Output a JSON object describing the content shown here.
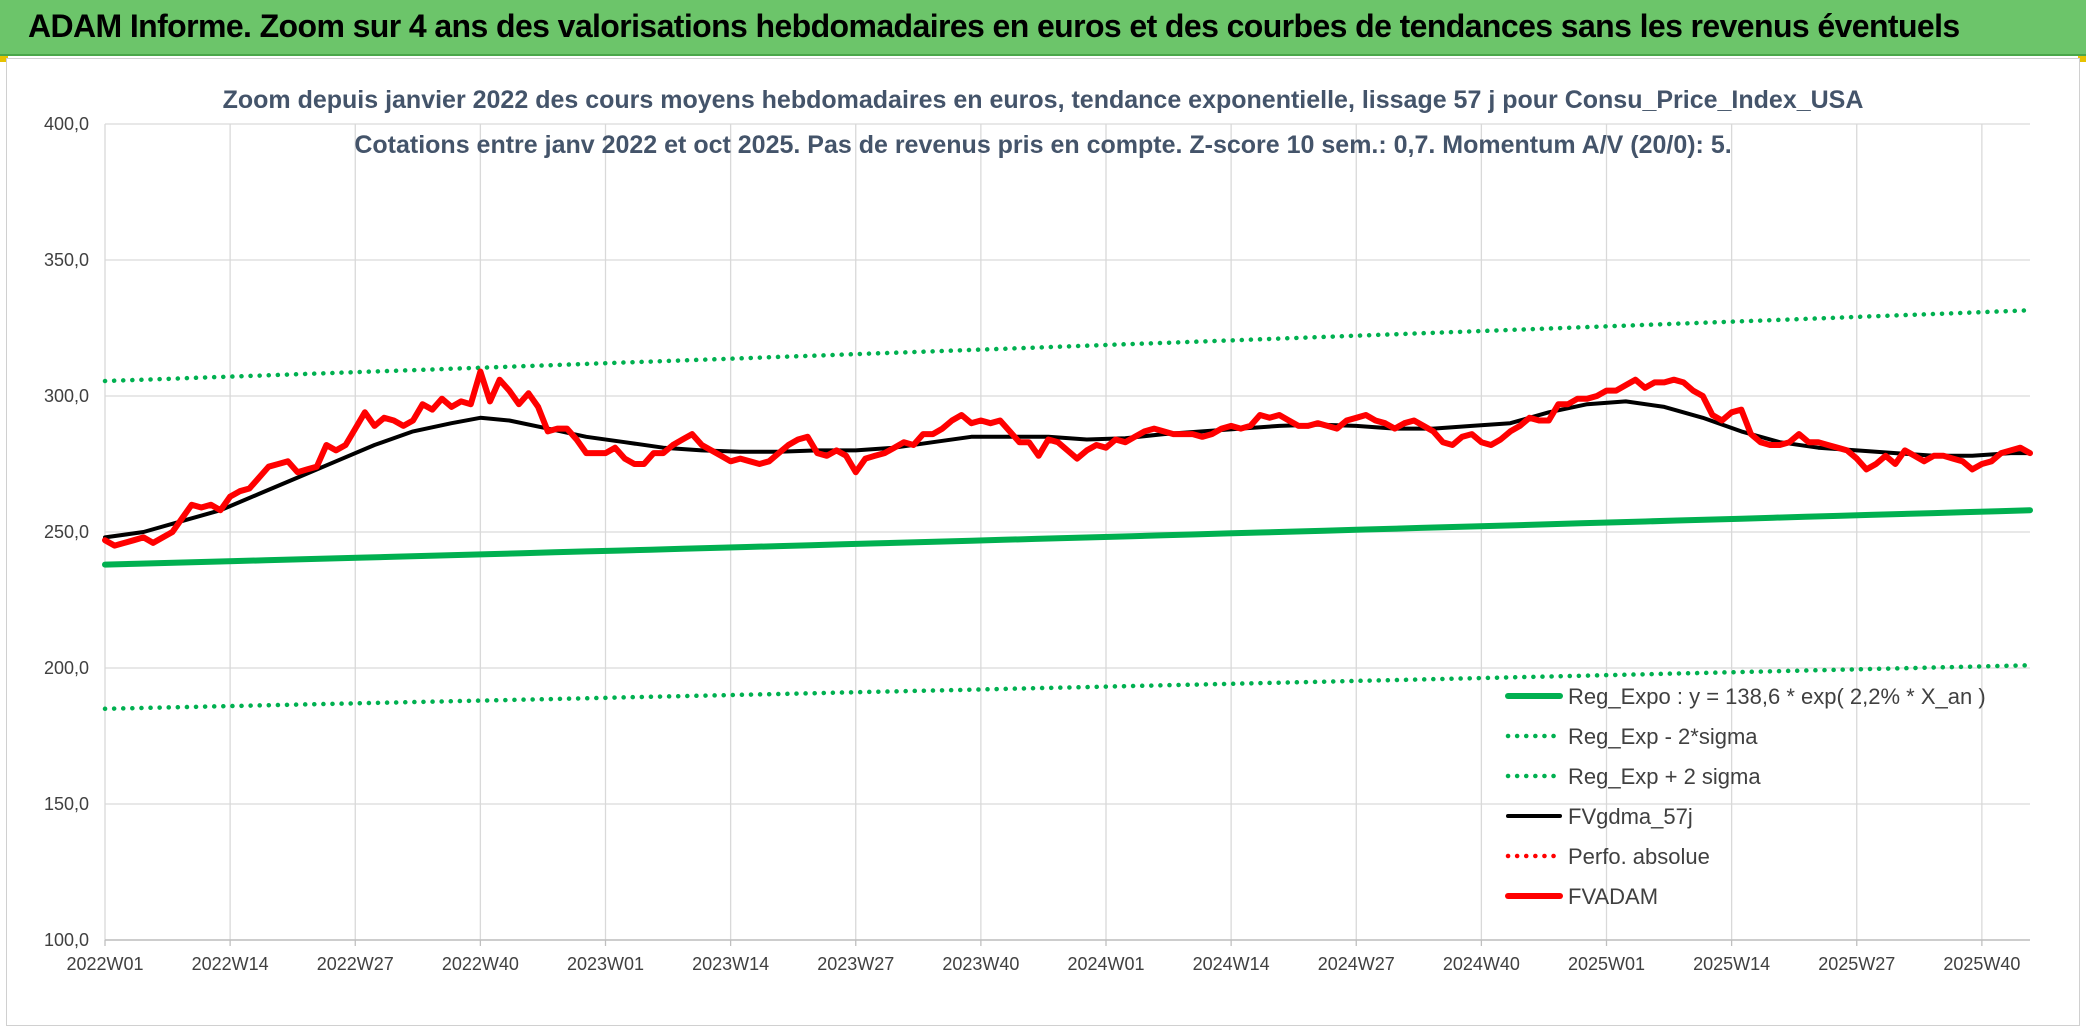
{
  "header": {
    "title": "ADAM Informe. Zoom sur 4 ans des valorisations hebdomadaires en euros et des courbes de tendances sans les revenus éventuels"
  },
  "colors": {
    "header_bg": "#6cc56a",
    "trend_green": "#00b050",
    "fvgdma": "#000000",
    "fvadam": "#ff0000",
    "title_text": "#44546a"
  },
  "chart_data": {
    "type": "line",
    "title": "Zoom depuis janvier 2022 des cours moyens hebdomadaires en euros, tendance exponentielle, lissage 57 j pour Consu_Price_Index_USA",
    "subtitle": "Cotations entre janv 2022 et oct 2025. Pas de revenus pris en compte. Z-score 10 sem.: 0,7. Momentum A/V (20/0): 5.",
    "xlabel": "",
    "ylabel": "",
    "ylim": [
      100,
      400
    ],
    "y_ticks": [
      "100,0",
      "150,0",
      "200,0",
      "250,0",
      "300,0",
      "350,0",
      "400,0"
    ],
    "x_tick_labels": [
      "2022W01",
      "2022W14",
      "2022W27",
      "2022W40",
      "2023W01",
      "2023W14",
      "2023W27",
      "2023W40",
      "2024W01",
      "2024W14",
      "2024W27",
      "2024W40",
      "2025W01",
      "2025W14",
      "2025W27",
      "2025W40"
    ],
    "x_tick_index": [
      0,
      13,
      26,
      39,
      52,
      65,
      78,
      91,
      104,
      117,
      130,
      143,
      156,
      169,
      182,
      195
    ],
    "n_weeks": 201,
    "grid": true,
    "legend_position": "bottom-right",
    "series": [
      {
        "name": "Reg_Expo : y = 138,6 * exp( 2,2% *  X_an )",
        "style": "solid-thick",
        "color": "#00b050",
        "points": [
          [
            0,
            238
          ],
          [
            200,
            258
          ]
        ]
      },
      {
        "name": "Reg_Exp - 2*sigma",
        "style": "dotted",
        "color": "#00b050",
        "points": [
          [
            0,
            185
          ],
          [
            200,
            201
          ]
        ]
      },
      {
        "name": "Reg_Exp + 2 sigma",
        "style": "dotted",
        "color": "#00b050",
        "points": [
          [
            0,
            305.5
          ],
          [
            200,
            331.5
          ]
        ]
      },
      {
        "name": "FVgdma_57j",
        "style": "solid",
        "color": "#000000",
        "points": [
          [
            0,
            248
          ],
          [
            4,
            250
          ],
          [
            8,
            254
          ],
          [
            12,
            258
          ],
          [
            16,
            264
          ],
          [
            20,
            270
          ],
          [
            24,
            276
          ],
          [
            28,
            282
          ],
          [
            32,
            287
          ],
          [
            36,
            290
          ],
          [
            39,
            292
          ],
          [
            42,
            291
          ],
          [
            46,
            288
          ],
          [
            50,
            285
          ],
          [
            54,
            283
          ],
          [
            58,
            281
          ],
          [
            62,
            280
          ],
          [
            66,
            279.5
          ],
          [
            70,
            279.5
          ],
          [
            74,
            280
          ],
          [
            78,
            280
          ],
          [
            82,
            281
          ],
          [
            86,
            283
          ],
          [
            90,
            285
          ],
          [
            94,
            285
          ],
          [
            98,
            285
          ],
          [
            102,
            284
          ],
          [
            106,
            284.5
          ],
          [
            110,
            286
          ],
          [
            114,
            287
          ],
          [
            118,
            288
          ],
          [
            122,
            289
          ],
          [
            126,
            289.5
          ],
          [
            130,
            289
          ],
          [
            134,
            288
          ],
          [
            138,
            288
          ],
          [
            142,
            289
          ],
          [
            146,
            290
          ],
          [
            150,
            294
          ],
          [
            154,
            297
          ],
          [
            158,
            298
          ],
          [
            162,
            296
          ],
          [
            166,
            292
          ],
          [
            170,
            287
          ],
          [
            174,
            283
          ],
          [
            178,
            281
          ],
          [
            182,
            280
          ],
          [
            186,
            279
          ],
          [
            190,
            278
          ],
          [
            194,
            278
          ],
          [
            198,
            279
          ],
          [
            200,
            279
          ]
        ]
      },
      {
        "name": "Perfo. absolue",
        "style": "dotted",
        "color": "#ff0000",
        "points": []
      },
      {
        "name": "FVADAM",
        "style": "solid-thick",
        "color": "#ff0000",
        "points": [
          [
            0,
            247
          ],
          [
            1,
            245
          ],
          [
            2,
            246
          ],
          [
            3,
            247
          ],
          [
            4,
            248
          ],
          [
            5,
            246
          ],
          [
            6,
            248
          ],
          [
            7,
            250
          ],
          [
            8,
            255
          ],
          [
            9,
            260
          ],
          [
            10,
            259
          ],
          [
            11,
            260
          ],
          [
            12,
            258
          ],
          [
            13,
            263
          ],
          [
            14,
            265
          ],
          [
            15,
            266
          ],
          [
            16,
            270
          ],
          [
            17,
            274
          ],
          [
            18,
            275
          ],
          [
            19,
            276
          ],
          [
            20,
            272
          ],
          [
            21,
            273
          ],
          [
            22,
            274
          ],
          [
            23,
            282
          ],
          [
            24,
            280
          ],
          [
            25,
            282
          ],
          [
            26,
            288
          ],
          [
            27,
            294
          ],
          [
            28,
            289
          ],
          [
            29,
            292
          ],
          [
            30,
            291
          ],
          [
            31,
            289
          ],
          [
            32,
            291
          ],
          [
            33,
            297
          ],
          [
            34,
            295
          ],
          [
            35,
            299
          ],
          [
            36,
            296
          ],
          [
            37,
            298
          ],
          [
            38,
            297
          ],
          [
            39,
            309
          ],
          [
            40,
            298
          ],
          [
            41,
            306
          ],
          [
            42,
            302
          ],
          [
            43,
            297
          ],
          [
            44,
            301
          ],
          [
            45,
            296
          ],
          [
            46,
            287
          ],
          [
            47,
            288
          ],
          [
            48,
            288
          ],
          [
            49,
            284
          ],
          [
            50,
            279
          ],
          [
            51,
            279
          ],
          [
            52,
            279
          ],
          [
            53,
            281
          ],
          [
            54,
            277
          ],
          [
            55,
            275
          ],
          [
            56,
            275
          ],
          [
            57,
            279
          ],
          [
            58,
            279
          ],
          [
            59,
            282
          ],
          [
            60,
            284
          ],
          [
            61,
            286
          ],
          [
            62,
            282
          ],
          [
            63,
            280
          ],
          [
            64,
            278
          ],
          [
            65,
            276
          ],
          [
            66,
            277
          ],
          [
            67,
            276
          ],
          [
            68,
            275
          ],
          [
            69,
            276
          ],
          [
            70,
            279
          ],
          [
            71,
            282
          ],
          [
            72,
            284
          ],
          [
            73,
            285
          ],
          [
            74,
            279
          ],
          [
            75,
            278
          ],
          [
            76,
            280
          ],
          [
            77,
            278
          ],
          [
            78,
            272
          ],
          [
            79,
            277
          ],
          [
            80,
            278
          ],
          [
            81,
            279
          ],
          [
            82,
            281
          ],
          [
            83,
            283
          ],
          [
            84,
            282
          ],
          [
            85,
            286
          ],
          [
            86,
            286
          ],
          [
            87,
            288
          ],
          [
            88,
            291
          ],
          [
            89,
            293
          ],
          [
            90,
            290
          ],
          [
            91,
            291
          ],
          [
            92,
            290
          ],
          [
            93,
            291
          ],
          [
            94,
            287
          ],
          [
            95,
            283
          ],
          [
            96,
            283
          ],
          [
            97,
            278
          ],
          [
            98,
            284
          ],
          [
            99,
            283
          ],
          [
            100,
            280
          ],
          [
            101,
            277
          ],
          [
            102,
            280
          ],
          [
            103,
            282
          ],
          [
            104,
            281
          ],
          [
            105,
            284
          ],
          [
            106,
            283
          ],
          [
            107,
            285
          ],
          [
            108,
            287
          ],
          [
            109,
            288
          ],
          [
            110,
            287
          ],
          [
            111,
            286
          ],
          [
            112,
            286
          ],
          [
            113,
            286
          ],
          [
            114,
            285
          ],
          [
            115,
            286
          ],
          [
            116,
            288
          ],
          [
            117,
            289
          ],
          [
            118,
            288
          ],
          [
            119,
            289
          ],
          [
            120,
            293
          ],
          [
            121,
            292
          ],
          [
            122,
            293
          ],
          [
            123,
            291
          ],
          [
            124,
            289
          ],
          [
            125,
            289
          ],
          [
            126,
            290
          ],
          [
            127,
            289
          ],
          [
            128,
            288
          ],
          [
            129,
            291
          ],
          [
            130,
            292
          ],
          [
            131,
            293
          ],
          [
            132,
            291
          ],
          [
            133,
            290
          ],
          [
            134,
            288
          ],
          [
            135,
            290
          ],
          [
            136,
            291
          ],
          [
            137,
            289
          ],
          [
            138,
            287
          ],
          [
            139,
            283
          ],
          [
            140,
            282
          ],
          [
            141,
            285
          ],
          [
            142,
            286
          ],
          [
            143,
            283
          ],
          [
            144,
            282
          ],
          [
            145,
            284
          ],
          [
            146,
            287
          ],
          [
            147,
            289
          ],
          [
            148,
            292
          ],
          [
            149,
            291
          ],
          [
            150,
            291
          ],
          [
            151,
            297
          ],
          [
            152,
            297
          ],
          [
            153,
            299
          ],
          [
            154,
            299
          ],
          [
            155,
            300
          ],
          [
            156,
            302
          ],
          [
            157,
            302
          ],
          [
            158,
            304
          ],
          [
            159,
            306
          ],
          [
            160,
            303
          ],
          [
            161,
            305
          ],
          [
            162,
            305
          ],
          [
            163,
            306
          ],
          [
            164,
            305
          ],
          [
            165,
            302
          ],
          [
            166,
            300
          ],
          [
            167,
            293
          ],
          [
            168,
            291
          ],
          [
            169,
            294
          ],
          [
            170,
            295
          ],
          [
            171,
            286
          ],
          [
            172,
            283
          ],
          [
            173,
            282
          ],
          [
            174,
            282
          ],
          [
            175,
            283
          ],
          [
            176,
            286
          ],
          [
            177,
            283
          ],
          [
            178,
            283
          ],
          [
            179,
            282
          ],
          [
            180,
            281
          ],
          [
            181,
            280
          ],
          [
            182,
            277
          ],
          [
            183,
            273
          ],
          [
            184,
            275
          ],
          [
            185,
            278
          ],
          [
            186,
            275
          ],
          [
            187,
            280
          ],
          [
            188,
            278
          ],
          [
            189,
            276
          ],
          [
            190,
            278
          ],
          [
            191,
            278
          ],
          [
            192,
            277
          ],
          [
            193,
            276
          ],
          [
            194,
            273
          ],
          [
            195,
            275
          ],
          [
            196,
            276
          ],
          [
            197,
            279
          ],
          [
            198,
            280
          ],
          [
            199,
            281
          ],
          [
            200,
            279
          ]
        ]
      }
    ]
  }
}
